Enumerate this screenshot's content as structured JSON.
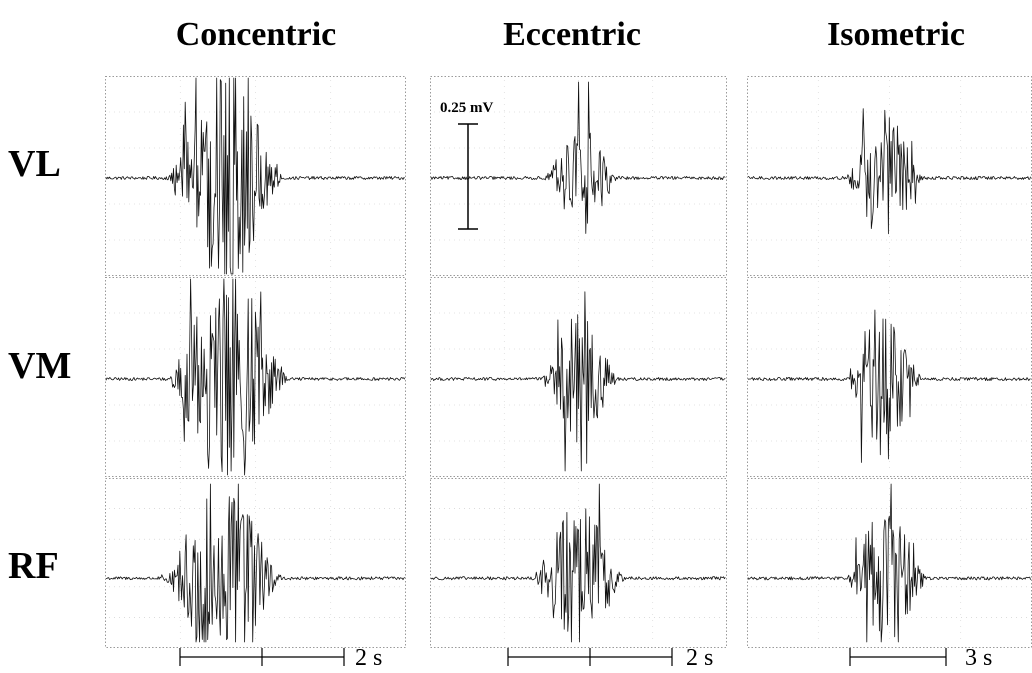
{
  "chart_data": {
    "type": "line",
    "title": "",
    "columns": [
      "Concentric",
      "Eccentric",
      "Isometric"
    ],
    "rows": [
      "VL",
      "VM",
      "RF"
    ],
    "amplitude_scale_label": "0.25 mV",
    "amplitude_scale_value_mV": 0.25,
    "time_scale_labels": [
      "2 s",
      "2 s",
      "3 s"
    ],
    "time_scale_values_s": [
      2,
      2,
      3
    ],
    "grid": true,
    "panels": [
      {
        "column": "Concentric",
        "muscle": "VL",
        "burst_start": 0.2,
        "burst_end": 0.6,
        "peak_mV": 0.5,
        "clipped": true
      },
      {
        "column": "Concentric",
        "muscle": "VM",
        "burst_start": 0.2,
        "burst_end": 0.62,
        "peak_mV": 0.5,
        "clipped": true
      },
      {
        "column": "Concentric",
        "muscle": "RF",
        "burst_start": 0.18,
        "burst_end": 0.6,
        "peak_mV": 0.4,
        "clipped": false
      },
      {
        "column": "Eccentric",
        "muscle": "VL",
        "burst_start": 0.38,
        "burst_end": 0.64,
        "peak_mV": 0.25,
        "clipped": false
      },
      {
        "column": "Eccentric",
        "muscle": "VM",
        "burst_start": 0.37,
        "burst_end": 0.64,
        "peak_mV": 0.3,
        "clipped": false
      },
      {
        "column": "Eccentric",
        "muscle": "RF",
        "burst_start": 0.34,
        "burst_end": 0.66,
        "peak_mV": 0.35,
        "clipped": false
      },
      {
        "column": "Isometric",
        "muscle": "VL",
        "burst_start": 0.34,
        "burst_end": 0.62,
        "peak_mV": 0.3,
        "clipped": false
      },
      {
        "column": "Isometric",
        "muscle": "VM",
        "burst_start": 0.34,
        "burst_end": 0.62,
        "peak_mV": 0.35,
        "clipped": false
      },
      {
        "column": "Isometric",
        "muscle": "RF",
        "burst_start": 0.34,
        "burst_end": 0.64,
        "peak_mV": 0.3,
        "clipped": false
      }
    ]
  }
}
